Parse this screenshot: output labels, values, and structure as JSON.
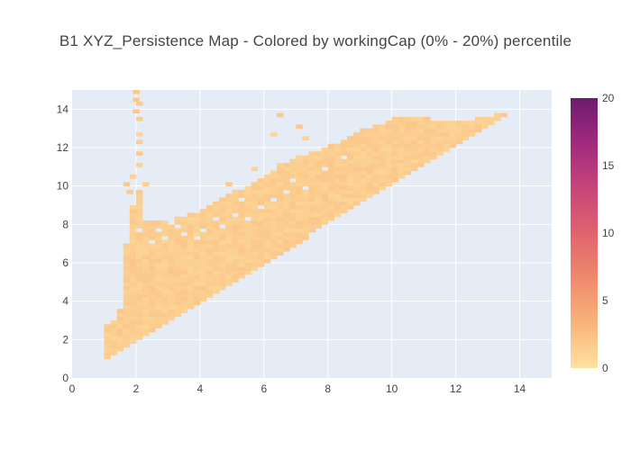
{
  "chart_data": {
    "type": "heatmap",
    "title": "B1 XYZ_Persistence Map - Colored by workingCap (0% - 20%) percentile",
    "xlabel": "",
    "ylabel": "",
    "xlim": [
      0,
      15
    ],
    "ylim": [
      0,
      15
    ],
    "x_ticks": [
      0,
      2,
      4,
      6,
      8,
      10,
      12,
      14
    ],
    "y_ticks": [
      0,
      2,
      4,
      6,
      8,
      10,
      12,
      14
    ],
    "grid": true,
    "bin_size": 0.2,
    "colorbar": {
      "range": [
        0,
        20
      ],
      "ticks": [
        0,
        5,
        10,
        15,
        20
      ],
      "colors": [
        "#fde3a0",
        "#f9b37a",
        "#ee8a6c",
        "#e0636e",
        "#c6457a",
        "#a02a7d",
        "#6e1a6e"
      ]
    },
    "region": {
      "lower_edge": {
        "x": [
          1.0,
          13.6
        ],
        "y": [
          1.0,
          13.8
        ]
      },
      "upper_edge": [
        [
          1.0,
          2.6
        ],
        [
          1.4,
          3.4
        ],
        [
          1.6,
          7.0
        ],
        [
          1.8,
          9.0
        ],
        [
          2.0,
          9.6
        ],
        [
          2.2,
          8.2
        ],
        [
          3.0,
          8.2
        ],
        [
          4.0,
          8.6
        ],
        [
          5.0,
          9.6
        ],
        [
          6.0,
          10.4
        ],
        [
          7.0,
          11.4
        ],
        [
          8.0,
          12.0
        ],
        [
          9.0,
          12.8
        ],
        [
          10.0,
          13.4
        ],
        [
          11.0,
          13.4
        ],
        [
          12.0,
          13.2
        ],
        [
          13.0,
          13.6
        ],
        [
          13.6,
          13.8
        ]
      ],
      "base_value": 1.5,
      "outliers": [
        [
          1.9,
          14.8
        ],
        [
          1.9,
          14.4
        ],
        [
          2.0,
          14.2
        ],
        [
          1.9,
          13.8
        ],
        [
          2.0,
          13.4
        ],
        [
          2.0,
          12.6
        ],
        [
          2.0,
          12.2
        ],
        [
          2.0,
          11.6
        ],
        [
          2.0,
          11.0
        ],
        [
          1.8,
          10.4
        ],
        [
          1.6,
          10.0
        ],
        [
          1.7,
          9.6
        ],
        [
          2.2,
          10.0
        ],
        [
          1.4,
          3.4
        ],
        [
          6.4,
          13.6
        ],
        [
          6.2,
          12.6
        ],
        [
          7.0,
          13.0
        ],
        [
          7.2,
          12.4
        ],
        [
          8.6,
          11.8
        ],
        [
          4.8,
          10.0
        ],
        [
          6.4,
          11.0
        ],
        [
          5.6,
          10.8
        ]
      ],
      "holes": [
        [
          2.2,
          8.6
        ],
        [
          2.8,
          7.2
        ],
        [
          3.4,
          7.4
        ],
        [
          3.2,
          7.8
        ],
        [
          3.8,
          7.2
        ],
        [
          4.0,
          7.6
        ],
        [
          2.6,
          7.6
        ],
        [
          2.4,
          7.0
        ],
        [
          5.0,
          8.4
        ],
        [
          5.4,
          8.2
        ],
        [
          5.8,
          8.8
        ],
        [
          4.6,
          7.8
        ],
        [
          6.2,
          9.2
        ],
        [
          6.6,
          9.6
        ],
        [
          7.2,
          9.8
        ],
        [
          6.8,
          10.2
        ],
        [
          2.0,
          7.6
        ],
        [
          3.0,
          8.0
        ],
        [
          4.4,
          8.2
        ],
        [
          5.2,
          9.2
        ],
        [
          7.8,
          10.8
        ],
        [
          8.4,
          11.4
        ]
      ]
    }
  }
}
